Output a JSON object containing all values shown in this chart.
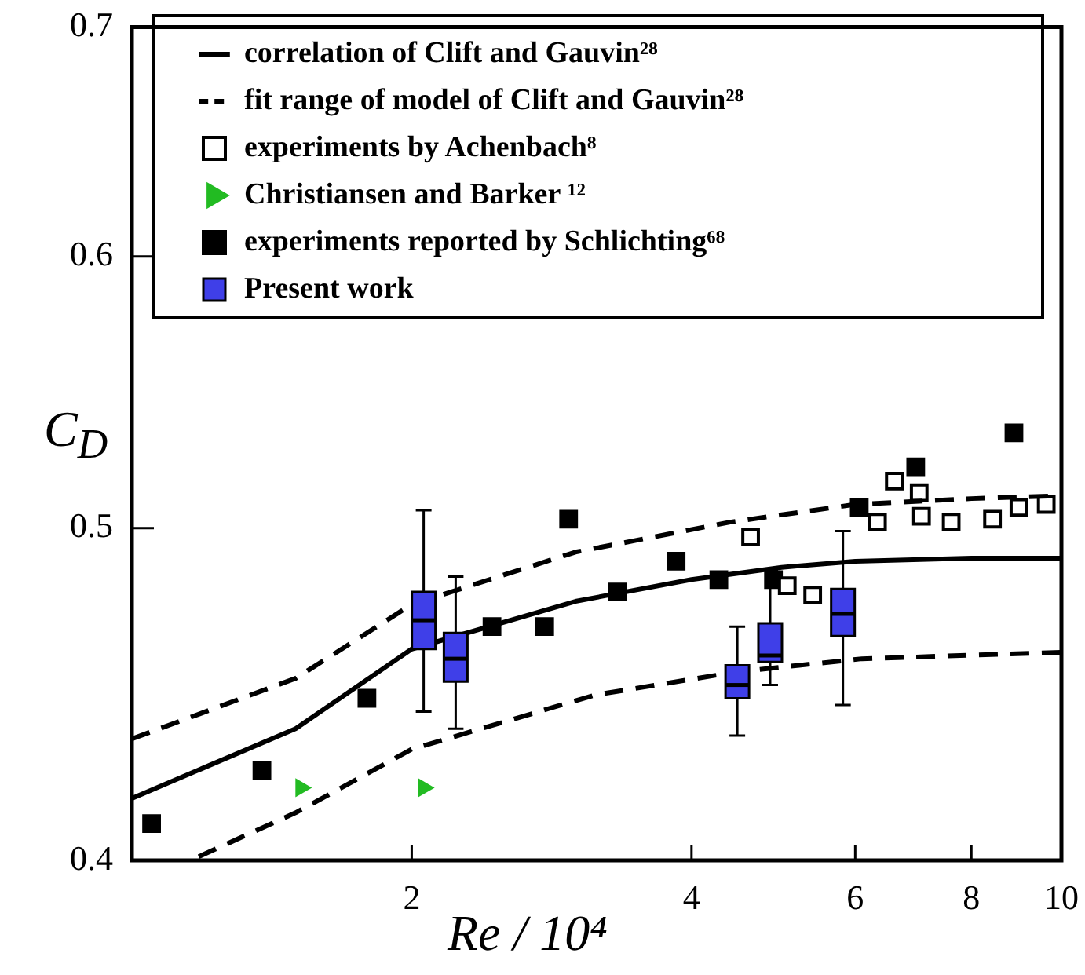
{
  "chart_data": {
    "type": "scatter",
    "xlabel": "Re / 10⁴",
    "ylabel": "C$_{D}$",
    "log": "xy",
    "xlim": [
      1,
      10
    ],
    "ylim": [
      0.4,
      0.7
    ],
    "xticks": [
      2,
      4,
      6,
      8,
      10
    ],
    "yticks": [
      0.4,
      0.5,
      0.6,
      0.7
    ],
    "legend": "top",
    "series": [
      {
        "name": "correlation of Clift and Gauvin²⁸",
        "type": "line",
        "line_style": "solid",
        "marker": "none",
        "color": "#000000",
        "x": [
          1,
          1.5,
          2,
          3,
          4,
          5,
          6,
          8,
          10
        ],
        "values": [
          0.417,
          0.437,
          0.461,
          0.476,
          0.483,
          0.487,
          0.489,
          0.49,
          0.49
        ]
      },
      {
        "name": "fit range of model of Clift and Gauvin²⁸",
        "type": "line",
        "line_style": "dashed",
        "marker": "none",
        "color": "#000000",
        "x": [
          1,
          1.5,
          2,
          3,
          4.4,
          6,
          8,
          10
        ],
        "values": [
          0.434,
          0.452,
          0.475,
          0.492,
          0.502,
          0.508,
          0.51,
          0.511
        ]
      },
      {
        "type": "line",
        "line_style": "dashed",
        "marker": "none",
        "color": "#000000",
        "x": [
          1.18,
          1.5,
          2,
          3.15,
          4.48,
          6.1,
          10
        ],
        "values": [
          0.401,
          0.413,
          0.431,
          0.447,
          0.454,
          0.458,
          0.46
        ]
      },
      {
        "name": "experiments by Achenbach⁸",
        "type": "scatter",
        "marker": "square",
        "color": "#ffffff",
        "x": [
          4.63,
          5.07,
          5.4,
          6.34,
          6.61,
          7.03,
          7.07,
          7.61,
          8.43,
          9.0,
          9.63
        ],
        "values": [
          0.497,
          0.481,
          0.478,
          0.502,
          0.516,
          0.512,
          0.504,
          0.502,
          0.503,
          0.507,
          0.508
        ]
      },
      {
        "name": "Christiansen and Barker ¹²",
        "type": "scatter",
        "marker": "triangle",
        "color": "#22bb22",
        "x": [
          1.52,
          2.06
        ],
        "values": [
          0.42,
          0.42
        ]
      },
      {
        "name": "experiments reported by Schlichting⁶⁸",
        "type": "scatter",
        "marker": "square",
        "color": "#000000",
        "x": [
          1.05,
          1.38,
          1.79,
          2.44,
          2.78,
          2.95,
          3.33,
          3.85,
          4.28,
          4.9,
          6.06,
          6.97,
          8.89
        ],
        "values": [
          0.41,
          0.425,
          0.446,
          0.468,
          0.468,
          0.503,
          0.479,
          0.489,
          0.483,
          0.483,
          0.507,
          0.521,
          0.533
        ]
      },
      {
        "name": "Present work",
        "type": "box",
        "color": "#3f3fe8",
        "x": [
          2.06,
          2.23,
          4.48,
          4.86,
          5.82
        ],
        "boxes": [
          {
            "low": 0.442,
            "q1": 0.461,
            "median": 0.47,
            "q3": 0.479,
            "high": 0.506
          },
          {
            "low": 0.437,
            "q1": 0.451,
            "median": 0.458,
            "q3": 0.466,
            "high": 0.484
          },
          {
            "low": 0.435,
            "q1": 0.446,
            "median": 0.45,
            "q3": 0.456,
            "high": 0.468
          },
          {
            "low": 0.45,
            "q1": 0.457,
            "median": 0.459,
            "q3": 0.469,
            "high": 0.486
          },
          {
            "low": 0.444,
            "q1": 0.465,
            "median": 0.472,
            "q3": 0.48,
            "high": 0.499
          }
        ]
      }
    ]
  }
}
